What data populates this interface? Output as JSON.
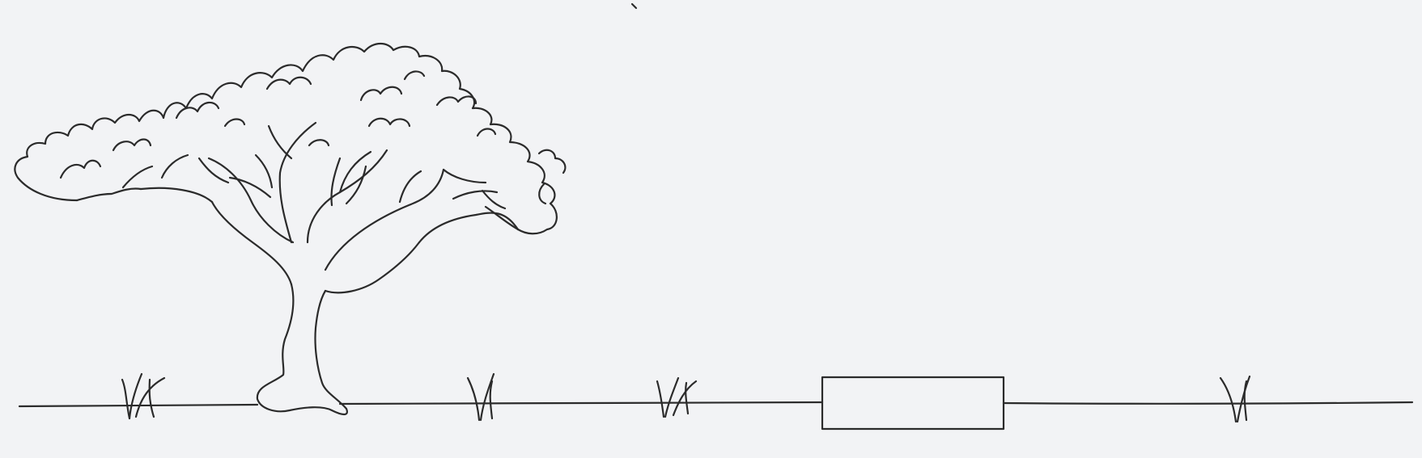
{
  "scene": {
    "background": "#f2f3f5",
    "ink": "#2b2b2b",
    "elements": [
      "acacia-tree",
      "ground-line",
      "grass-tuft",
      "grass-tuft",
      "grass-tuft",
      "grass-tuft",
      "rectangle-box"
    ]
  }
}
